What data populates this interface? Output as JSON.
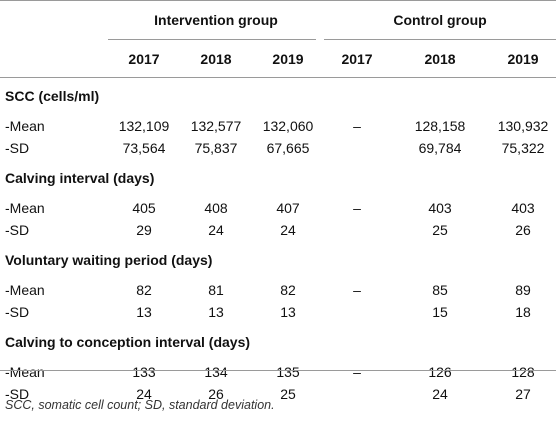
{
  "header": {
    "group_intervention": "Intervention group",
    "group_control": "Control group",
    "years": [
      "2017",
      "2018",
      "2019",
      "2017",
      "2018",
      "2019"
    ]
  },
  "sections": [
    {
      "title": "SCC (cells/ml)",
      "rows": [
        {
          "label": "-Mean",
          "values": [
            "132,109",
            "132,577",
            "132,060",
            "–",
            "128,158",
            "130,932"
          ]
        },
        {
          "label": "-SD",
          "values": [
            "73,564",
            "75,837",
            "67,665",
            "",
            "69,784",
            "75,322"
          ]
        }
      ]
    },
    {
      "title": "Calving interval (days)",
      "rows": [
        {
          "label": "-Mean",
          "values": [
            "405",
            "408",
            "407",
            "–",
            "403",
            "403"
          ]
        },
        {
          "label": "-SD",
          "values": [
            "29",
            "24",
            "24",
            "",
            "25",
            "26"
          ]
        }
      ]
    },
    {
      "title": "Voluntary waiting period (days)",
      "rows": [
        {
          "label": "-Mean",
          "values": [
            "82",
            "81",
            "82",
            "–",
            "85",
            "89"
          ]
        },
        {
          "label": "-SD",
          "values": [
            "13",
            "13",
            "13",
            "",
            "15",
            "18"
          ]
        }
      ]
    },
    {
      "title": "Calving to conception interval (days)",
      "rows": [
        {
          "label": "-Mean",
          "values": [
            "133",
            "134",
            "135",
            "–",
            "126",
            "128"
          ]
        },
        {
          "label": "-SD",
          "values": [
            "24",
            "26",
            "25",
            "",
            "24",
            "27"
          ]
        }
      ]
    }
  ],
  "footnote": "SCC, somatic cell count; SD, standard deviation."
}
